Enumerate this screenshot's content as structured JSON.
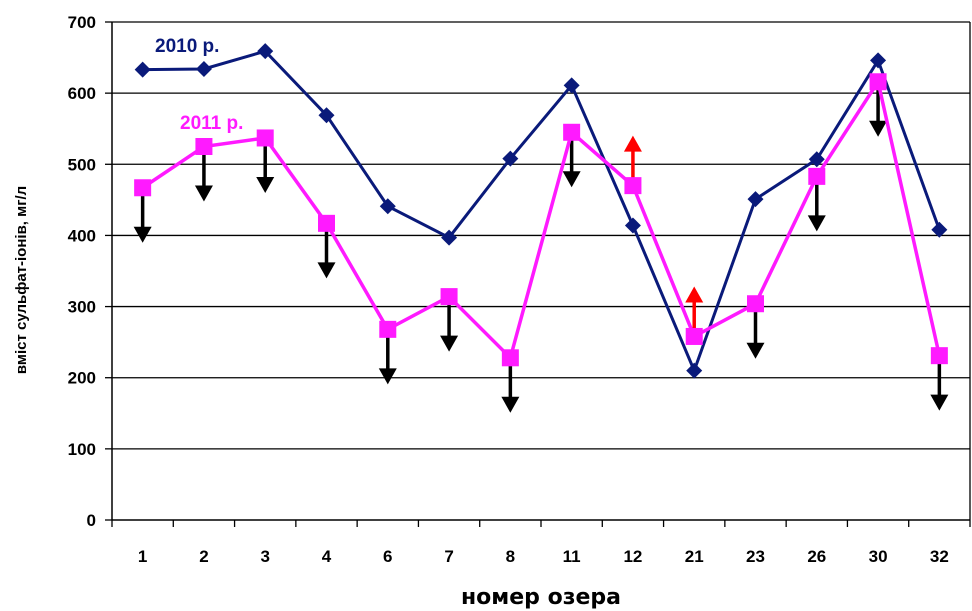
{
  "chart_data": {
    "type": "line",
    "title": "",
    "xlabel": "номер озера",
    "ylabel": "вміст сульфат-іонів, мг/л",
    "categories": [
      "1",
      "2",
      "3",
      "4",
      "6",
      "7",
      "8",
      "11",
      "12",
      "21",
      "23",
      "26",
      "30",
      "32"
    ],
    "ylim": [
      0,
      700
    ],
    "yticks": [
      0,
      100,
      200,
      300,
      400,
      500,
      600,
      700
    ],
    "grid": true,
    "series": [
      {
        "name": "2010 р.",
        "color": "#0a1a7a",
        "marker": "diamond",
        "values": [
          633,
          634,
          659,
          569,
          441,
          397,
          508,
          611,
          414,
          210,
          451,
          507,
          646,
          408
        ]
      },
      {
        "name": "2011 р.",
        "color": "#ff1aff",
        "marker": "square",
        "values": [
          467,
          525,
          537,
          417,
          268,
          314,
          228,
          545,
          470,
          258,
          304,
          483,
          616,
          231
        ]
      }
    ],
    "change_arrows": [
      {
        "category": "1",
        "direction": "down",
        "color": "#000000"
      },
      {
        "category": "2",
        "direction": "down",
        "color": "#000000"
      },
      {
        "category": "3",
        "direction": "down",
        "color": "#000000"
      },
      {
        "category": "4",
        "direction": "down",
        "color": "#000000"
      },
      {
        "category": "6",
        "direction": "down",
        "color": "#000000"
      },
      {
        "category": "7",
        "direction": "down",
        "color": "#000000"
      },
      {
        "category": "8",
        "direction": "down",
        "color": "#000000"
      },
      {
        "category": "11",
        "direction": "down",
        "color": "#000000"
      },
      {
        "category": "12",
        "direction": "up",
        "color": "#ff0000"
      },
      {
        "category": "21",
        "direction": "up",
        "color": "#ff0000"
      },
      {
        "category": "23",
        "direction": "down",
        "color": "#000000"
      },
      {
        "category": "26",
        "direction": "down",
        "color": "#000000"
      },
      {
        "category": "30",
        "direction": "down",
        "color": "#000000"
      },
      {
        "category": "32",
        "direction": "down",
        "color": "#000000"
      }
    ]
  }
}
